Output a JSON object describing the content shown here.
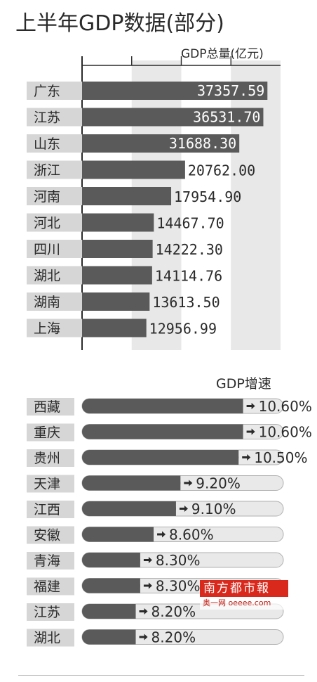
{
  "title": "上半年GDP数据(部分)",
  "chart_data": [
    {
      "type": "bar",
      "orientation": "horizontal",
      "title": "上半年GDP数据(部分)",
      "unit_label": "GDP总量(亿元)",
      "categories": [
        "广东",
        "江苏",
        "山东",
        "浙江",
        "河南",
        "河北",
        "四川",
        "湖北",
        "湖南",
        "上海"
      ],
      "values": [
        37357.59,
        36531.7,
        31688.3,
        20762.0,
        17954.9,
        14467.7,
        14222.3,
        14114.76,
        13613.5,
        12956.99
      ],
      "value_labels": [
        "37357.59",
        "36531.70",
        "31688.30",
        "20762.00",
        "17954.90",
        "14467.70",
        "14222.30",
        "14114.76",
        "13613.50",
        "12956.99"
      ],
      "xlim": [
        0,
        40000
      ],
      "grid": true,
      "colors": {
        "bar": "#5a5a5a",
        "band": "#e8e8e8",
        "label_inside": "#ffffff",
        "label_outside": "#2a2a2a"
      }
    },
    {
      "type": "bar",
      "orientation": "horizontal",
      "unit_label": "GDP增速",
      "categories": [
        "西藏",
        "重庆",
        "贵州",
        "天津",
        "江西",
        "安徽",
        "青海",
        "福建",
        "江苏",
        "湖北"
      ],
      "values": [
        10.6,
        10.6,
        10.5,
        9.2,
        9.1,
        8.6,
        8.3,
        8.3,
        8.2,
        8.2
      ],
      "value_labels": [
        "10.60%",
        "10.60%",
        "10.50%",
        "9.20%",
        "9.10%",
        "8.60%",
        "8.30%",
        "8.30%",
        "8.20%",
        "8.20%"
      ],
      "arrow_icon": "right-arrow-icon",
      "colors": {
        "bar": "#5a5a5a",
        "track": "#e9e9e9",
        "track_border": "#b0b0b0"
      }
    }
  ],
  "watermark": {
    "brand": "南方都市報",
    "site": "奥一网 oeeee.com",
    "brand_bg": "#d8291c"
  }
}
